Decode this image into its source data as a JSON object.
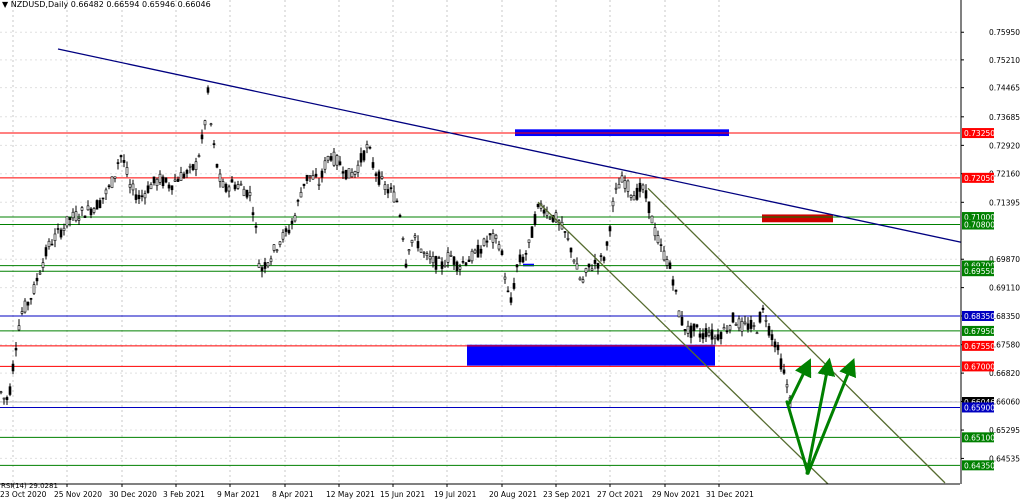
{
  "header": {
    "symbol": "NZDUSD,Daily",
    "ohlc": "0.66482 0.66594 0.65946 0.66046",
    "dropdown_glyph": "▼"
  },
  "indicator": {
    "label": "RSI(14) 29.0281"
  },
  "chart_data": {
    "type": "candlestick",
    "symbol": "NZDUSD",
    "timeframe": "Daily",
    "last_price": 0.66046,
    "ylim": [
      0.6385,
      0.7676
    ],
    "x_tick_labels": [
      "23 Oct 2020",
      "25 Nov 2020",
      "30 Dec 2020",
      "3 Feb 2021",
      "9 Mar 2021",
      "8 Apr 2021",
      "12 May 2021",
      "15 Jun 2021",
      "19 Jul 2021",
      "20 Aug 2021",
      "23 Sep 2021",
      "27 Oct 2021",
      "29 Nov 2021",
      "31 Dec 2021"
    ],
    "y_tick_labels": [
      0.7595,
      0.7521,
      0.74465,
      0.73685,
      0.7292,
      0.7216,
      0.71395,
      0.6987,
      0.6911,
      0.6835,
      0.6758,
      0.6682,
      0.6606,
      0.65295,
      0.64535
    ],
    "price_path": [
      [
        0,
        0.6635
      ],
      [
        6,
        0.6605
      ],
      [
        10,
        0.664
      ],
      [
        14,
        0.672
      ],
      [
        18,
        0.68
      ],
      [
        22,
        0.6845
      ],
      [
        28,
        0.687
      ],
      [
        34,
        0.6905
      ],
      [
        40,
        0.696
      ],
      [
        50,
        0.703
      ],
      [
        60,
        0.706
      ],
      [
        70,
        0.7095
      ],
      [
        80,
        0.711
      ],
      [
        90,
        0.712
      ],
      [
        100,
        0.714
      ],
      [
        110,
        0.718
      ],
      [
        115,
        0.7215
      ],
      [
        120,
        0.727
      ],
      [
        125,
        0.724
      ],
      [
        130,
        0.718
      ],
      [
        140,
        0.715
      ],
      [
        150,
        0.7185
      ],
      [
        160,
        0.72
      ],
      [
        170,
        0.7185
      ],
      [
        180,
        0.721
      ],
      [
        190,
        0.722
      ],
      [
        196,
        0.724
      ],
      [
        200,
        0.728
      ],
      [
        204,
        0.733
      ],
      [
        208,
        0.743
      ],
      [
        212,
        0.732
      ],
      [
        216,
        0.725
      ],
      [
        220,
        0.72
      ],
      [
        225,
        0.717
      ],
      [
        230,
        0.719
      ],
      [
        240,
        0.7185
      ],
      [
        250,
        0.716
      ],
      [
        255,
        0.71
      ],
      [
        258,
        0.699
      ],
      [
        262,
        0.696
      ],
      [
        266,
        0.698
      ],
      [
        272,
        0.7
      ],
      [
        280,
        0.704
      ],
      [
        288,
        0.706
      ],
      [
        296,
        0.711
      ],
      [
        300,
        0.716
      ],
      [
        305,
        0.72
      ],
      [
        310,
        0.721
      ],
      [
        320,
        0.719
      ],
      [
        325,
        0.724
      ],
      [
        330,
        0.727
      ],
      [
        336,
        0.725
      ],
      [
        342,
        0.724
      ],
      [
        348,
        0.721
      ],
      [
        356,
        0.7225
      ],
      [
        362,
        0.726
      ],
      [
        368,
        0.729
      ],
      [
        374,
        0.723
      ],
      [
        380,
        0.72
      ],
      [
        386,
        0.7175
      ],
      [
        392,
        0.7165
      ],
      [
        398,
        0.714
      ],
      [
        402,
        0.708
      ],
      [
        406,
        0.698
      ],
      [
        410,
        0.704
      ],
      [
        418,
        0.703
      ],
      [
        426,
        0.699
      ],
      [
        434,
        0.698
      ],
      [
        442,
        0.697
      ],
      [
        450,
        0.7
      ],
      [
        458,
        0.697
      ],
      [
        466,
        0.6985
      ],
      [
        474,
        0.6995
      ],
      [
        482,
        0.702
      ],
      [
        490,
        0.7045
      ],
      [
        500,
        0.703
      ],
      [
        506,
        0.693
      ],
      [
        510,
        0.6855
      ],
      [
        514,
        0.692
      ],
      [
        518,
        0.698
      ],
      [
        524,
        0.699
      ],
      [
        530,
        0.703
      ],
      [
        536,
        0.711
      ],
      [
        542,
        0.7135
      ],
      [
        548,
        0.711
      ],
      [
        556,
        0.7095
      ],
      [
        564,
        0.706
      ],
      [
        572,
        0.701
      ],
      [
        578,
        0.695
      ],
      [
        582,
        0.692
      ],
      [
        588,
        0.696
      ],
      [
        594,
        0.6975
      ],
      [
        600,
        0.698
      ],
      [
        606,
        0.7
      ],
      [
        612,
        0.712
      ],
      [
        618,
        0.7185
      ],
      [
        624,
        0.72
      ],
      [
        630,
        0.717
      ],
      [
        636,
        0.716
      ],
      [
        642,
        0.718
      ],
      [
        648,
        0.714
      ],
      [
        654,
        0.707
      ],
      [
        660,
        0.702
      ],
      [
        666,
        0.699
      ],
      [
        672,
        0.695
      ],
      [
        676,
        0.689
      ],
      [
        680,
        0.683
      ],
      [
        684,
        0.681
      ],
      [
        690,
        0.679
      ],
      [
        696,
        0.68
      ],
      [
        702,
        0.678
      ],
      [
        708,
        0.68
      ],
      [
        714,
        0.6775
      ],
      [
        720,
        0.679
      ],
      [
        726,
        0.68
      ],
      [
        734,
        0.683
      ],
      [
        742,
        0.6805
      ],
      [
        750,
        0.681
      ],
      [
        756,
        0.6795
      ],
      [
        762,
        0.685
      ],
      [
        766,
        0.6835
      ],
      [
        770,
        0.679
      ],
      [
        774,
        0.6775
      ],
      [
        778,
        0.674
      ],
      [
        782,
        0.67
      ],
      [
        786,
        0.666
      ],
      [
        790,
        0.6606
      ]
    ],
    "horizontal_levels": [
      {
        "price": 0.7325,
        "color": "#ff0000",
        "label": "0.73250"
      },
      {
        "price": 0.7205,
        "color": "#ff0000",
        "label": "0.72050"
      },
      {
        "price": 0.71,
        "color": "#008000",
        "label": "0.71000"
      },
      {
        "price": 0.708,
        "color": "#008000",
        "label": "0.70800"
      },
      {
        "price": 0.697,
        "color": "#008000",
        "label": "0.69700"
      },
      {
        "price": 0.6955,
        "color": "#008000",
        "label": "0.69550"
      },
      {
        "price": 0.6835,
        "color": "#0000c0",
        "label": "0.68350"
      },
      {
        "price": 0.6795,
        "color": "#008000",
        "label": "0.67950"
      },
      {
        "price": 0.6755,
        "color": "#ff0000",
        "label": "0.67550"
      },
      {
        "price": 0.67,
        "color": "#ff0000",
        "label": "0.67000"
      },
      {
        "price": 0.66046,
        "color": "#000000",
        "label": "0.66046",
        "kind": "price"
      },
      {
        "price": 0.659,
        "color": "#0000c0",
        "label": "0.65900"
      },
      {
        "price": 0.651,
        "color": "#008000",
        "label": "0.65100"
      },
      {
        "price": 0.6435,
        "color": "#008000",
        "label": "0.64350"
      }
    ],
    "trendlines": [
      {
        "x1": 58,
        "y1": 0.755,
        "x2": 1016,
        "y2": 0.7001,
        "color": "#000080",
        "name": "main-down-trendline"
      },
      {
        "x1": 538,
        "y1": 0.714,
        "x2": 828,
        "y2": 0.6385,
        "color": "#556b2f",
        "name": "channel-lower-line"
      },
      {
        "x1": 648,
        "y1": 0.7177,
        "x2": 945,
        "y2": 0.6388,
        "color": "#556b2f",
        "name": "channel-upper-line"
      }
    ],
    "zones": [
      {
        "x1": 515,
        "x2": 729,
        "p1": 0.7335,
        "p2": 0.7317,
        "color": "#0000ff",
        "name": "zone-upper-blue"
      },
      {
        "x1": 762,
        "x2": 833,
        "p1": 0.7107,
        "p2": 0.7086,
        "color": "#cc0000",
        "name": "zone-red"
      },
      {
        "x1": 467,
        "x2": 715,
        "p1": 0.6758,
        "p2": 0.6702,
        "color": "#0000ff",
        "name": "zone-lower-blue"
      },
      {
        "x1": 523,
        "x2": 534,
        "p1": 0.6975,
        "p2": 0.6968,
        "color": "#0000ff",
        "name": "zone-small-blue"
      }
    ],
    "scenario_arrows": [
      {
        "from": [
          787,
          0.6605
        ],
        "to": [
          808,
          0.6414
        ],
        "color": "#008000"
      },
      {
        "from": [
          789,
          0.6601
        ],
        "to": [
          807,
          0.67
        ],
        "color": "#008000",
        "head": true
      },
      {
        "from": [
          807,
          0.6414
        ],
        "to": [
          828,
          0.67
        ],
        "color": "#008000",
        "head": true
      },
      {
        "from": [
          808,
          0.6414
        ],
        "to": [
          851,
          0.67
        ],
        "color": "#008000",
        "head": true
      }
    ]
  }
}
